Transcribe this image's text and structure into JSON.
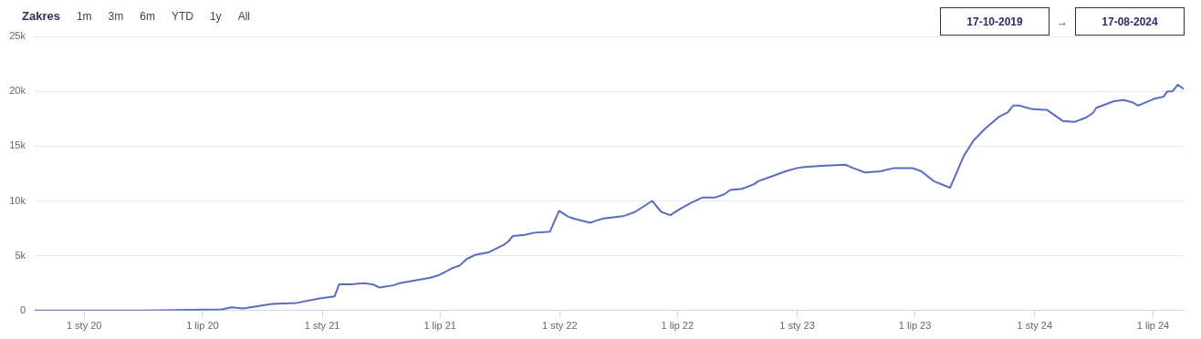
{
  "chart_data": {
    "type": "line",
    "grid": "y",
    "legend": false,
    "marker": "none",
    "line_style": "solid",
    "annotations": [
      "Zakres",
      "1m",
      "3m",
      "6m",
      "YTD",
      "1y",
      "All",
      "17-10-2019",
      "→",
      "17-08-2024"
    ],
    "xlim": [
      "2019-10-17",
      "2024-08-17"
    ],
    "xticks": [
      {
        "value": "2020-01-01",
        "label": "1 sty 20"
      },
      {
        "value": "2020-07-01",
        "label": "1 lip 20"
      },
      {
        "value": "2021-01-01",
        "label": "1 sty 21"
      },
      {
        "value": "2021-07-01",
        "label": "1 lip 21"
      },
      {
        "value": "2022-01-01",
        "label": "1 sty 22"
      },
      {
        "value": "2022-07-01",
        "label": "1 lip 22"
      },
      {
        "value": "2023-01-01",
        "label": "1 sty 23"
      },
      {
        "value": "2023-07-01",
        "label": "1 lip 23"
      },
      {
        "value": "2024-01-01",
        "label": "1 sty 24"
      },
      {
        "value": "2024-07-01",
        "label": "1 lip 24"
      }
    ],
    "ylim": [
      0,
      25000
    ],
    "yticks": [
      0,
      {
        "value": 5000,
        "label": "5k"
      },
      {
        "value": 10000,
        "label": "10k"
      },
      {
        "value": 15000,
        "label": "15k"
      },
      {
        "value": 20000,
        "label": "20k"
      },
      {
        "value": 25000,
        "label": "25k"
      }
    ],
    "series": [
      {
        "color": "#5b6bc0",
        "x": [
          "2019-10-17",
          "2020-01-01",
          "2020-04-01",
          "2020-07-31",
          "2020-08-14",
          "2020-09-01",
          "2020-10-16",
          "2020-11-23",
          "2020-12-28",
          "2021-01-20",
          "2021-01-27",
          "2021-02-14",
          "2021-03-06",
          "2021-03-19",
          "2021-03-30",
          "2021-04-20",
          "2021-04-30",
          "2021-06-16",
          "2021-06-28",
          "2021-07-21",
          "2021-07-31",
          "2021-08-11",
          "2021-08-25",
          "2021-09-13",
          "2021-10-07",
          "2021-10-14",
          "2021-10-21",
          "2021-11-08",
          "2021-11-23",
          "2021-12-17",
          "2021-12-31",
          "2022-01-13",
          "2022-01-22",
          "2022-02-17",
          "2022-02-26",
          "2022-03-09",
          "2022-04-08",
          "2022-04-27",
          "2022-05-23",
          "2022-06-06",
          "2022-06-20",
          "2022-07-03",
          "2022-07-21",
          "2022-08-08",
          "2022-08-27",
          "2022-09-11",
          "2022-09-20",
          "2022-10-08",
          "2022-10-26",
          "2022-11-02",
          "2022-11-26",
          "2022-12-14",
          "2023-01-01",
          "2023-01-13",
          "2023-02-07",
          "2023-03-16",
          "2023-03-28",
          "2023-04-15",
          "2023-05-09",
          "2023-05-30",
          "2023-06-27",
          "2023-07-11",
          "2023-07-30",
          "2023-08-24",
          "2023-09-14",
          "2023-09-29",
          "2023-10-17",
          "2023-11-08",
          "2023-11-21",
          "2023-11-29",
          "2023-12-08",
          "2023-12-26",
          "2024-01-14",
          "2024-01-20",
          "2024-02-13",
          "2024-03-02",
          "2024-03-20",
          "2024-03-30",
          "2024-04-05",
          "2024-05-02",
          "2024-05-17",
          "2024-05-30",
          "2024-06-08",
          "2024-07-02",
          "2024-07-17",
          "2024-07-23",
          "2024-07-31",
          "2024-08-08",
          "2024-08-17"
        ],
        "values": [
          0,
          0,
          0,
          100,
          300,
          200,
          600,
          700,
          1100,
          1300,
          2400,
          2400,
          2500,
          2400,
          2100,
          2300,
          2500,
          3000,
          3200,
          3900,
          4100,
          4700,
          5100,
          5300,
          6000,
          6300,
          6800,
          6900,
          7100,
          7200,
          9100,
          8600,
          8400,
          8000,
          8200,
          8400,
          8600,
          9000,
          10000,
          9000,
          8700,
          9200,
          9800,
          10300,
          10300,
          10600,
          11000,
          11100,
          11500,
          11800,
          12300,
          12700,
          13000,
          13100,
          13200,
          13300,
          13000,
          12600,
          12700,
          13000,
          13000,
          12700,
          11800,
          11200,
          14100,
          15500,
          16600,
          17700,
          18100,
          18700,
          18700,
          18400,
          18300,
          18300,
          17300,
          17200,
          17600,
          18000,
          18500,
          19100,
          19200,
          19000,
          18700,
          19300,
          19500,
          20000,
          20000,
          20600,
          20200
        ]
      }
    ]
  }
}
